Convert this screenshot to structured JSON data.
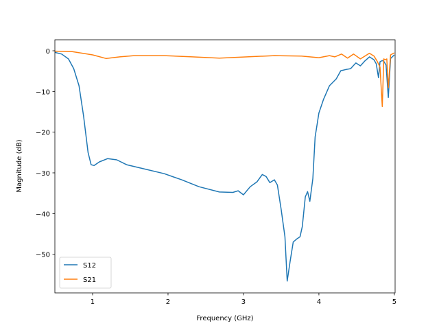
{
  "chart_data": {
    "type": "line",
    "title": "",
    "xlabel": "Frequency (GHz)",
    "ylabel": "Magnitude (dB)",
    "xlim": [
      0.5,
      5.01
    ],
    "ylim": [
      -59.5,
      2.7
    ],
    "xticks": [
      1,
      2,
      3,
      4,
      5
    ],
    "yticks": [
      0,
      -10,
      -20,
      -30,
      -40,
      -50
    ],
    "grid": false,
    "legend_position": "lower-left",
    "series": [
      {
        "name": "S12",
        "color": "#1f77b4",
        "x": [
          0.5,
          0.59,
          0.68,
          0.75,
          0.82,
          0.88,
          0.94,
          0.98,
          1.02,
          1.09,
          1.2,
          1.32,
          1.45,
          1.68,
          1.95,
          2.18,
          2.41,
          2.68,
          2.86,
          2.93,
          3.0,
          3.09,
          3.18,
          3.25,
          3.3,
          3.35,
          3.41,
          3.45,
          3.5,
          3.55,
          3.58,
          3.62,
          3.66,
          3.71,
          3.75,
          3.78,
          3.82,
          3.85,
          3.88,
          3.92,
          3.95,
          4.0,
          4.06,
          4.14,
          4.23,
          4.29,
          4.36,
          4.42,
          4.49,
          4.55,
          4.61,
          4.67,
          4.73,
          4.76,
          4.79,
          4.81,
          4.84,
          4.86,
          4.89,
          4.92,
          4.95,
          5.0
        ],
        "y": [
          -0.4,
          -0.8,
          -2,
          -4.4,
          -8.6,
          -16,
          -25,
          -28,
          -28.2,
          -27.3,
          -26.5,
          -26.8,
          -28,
          -29,
          -30.2,
          -31.7,
          -33.4,
          -34.7,
          -34.8,
          -34.4,
          -35.4,
          -33.4,
          -32.2,
          -30.4,
          -30.9,
          -32.4,
          -31.7,
          -33,
          -39,
          -45.7,
          -56.6,
          -51.6,
          -47,
          -46.2,
          -45.7,
          -43.2,
          -35.9,
          -34.6,
          -37,
          -31.4,
          -21.2,
          -15.3,
          -12,
          -8.6,
          -6.9,
          -4.9,
          -4.6,
          -4.4,
          -3,
          -3.7,
          -2.5,
          -1.5,
          -2.2,
          -3.2,
          -6.6,
          -2.7,
          -2.4,
          -2.6,
          -3.5,
          -11.5,
          -1.9,
          -1.0
        ]
      },
      {
        "name": "S21",
        "color": "#ff7f0e",
        "x": [
          0.5,
          0.73,
          1.0,
          1.18,
          1.36,
          1.55,
          1.95,
          2.32,
          2.68,
          3.05,
          3.41,
          3.77,
          4.0,
          4.14,
          4.21,
          4.3,
          4.38,
          4.46,
          4.55,
          4.67,
          4.73,
          4.77,
          4.81,
          4.84,
          4.86,
          4.88,
          4.9,
          4.92,
          4.95,
          5.0
        ],
        "y": [
          -0.1,
          -0.2,
          -1,
          -1.9,
          -1.5,
          -1.2,
          -1.2,
          -1.5,
          -1.8,
          -1.5,
          -1.2,
          -1.3,
          -1.7,
          -1.2,
          -1.5,
          -0.8,
          -1.8,
          -0.8,
          -2,
          -0.6,
          -1.3,
          -2.5,
          -4,
          -13.7,
          -2,
          -2.2,
          -2,
          -9.1,
          -1,
          -0.5
        ]
      }
    ]
  }
}
